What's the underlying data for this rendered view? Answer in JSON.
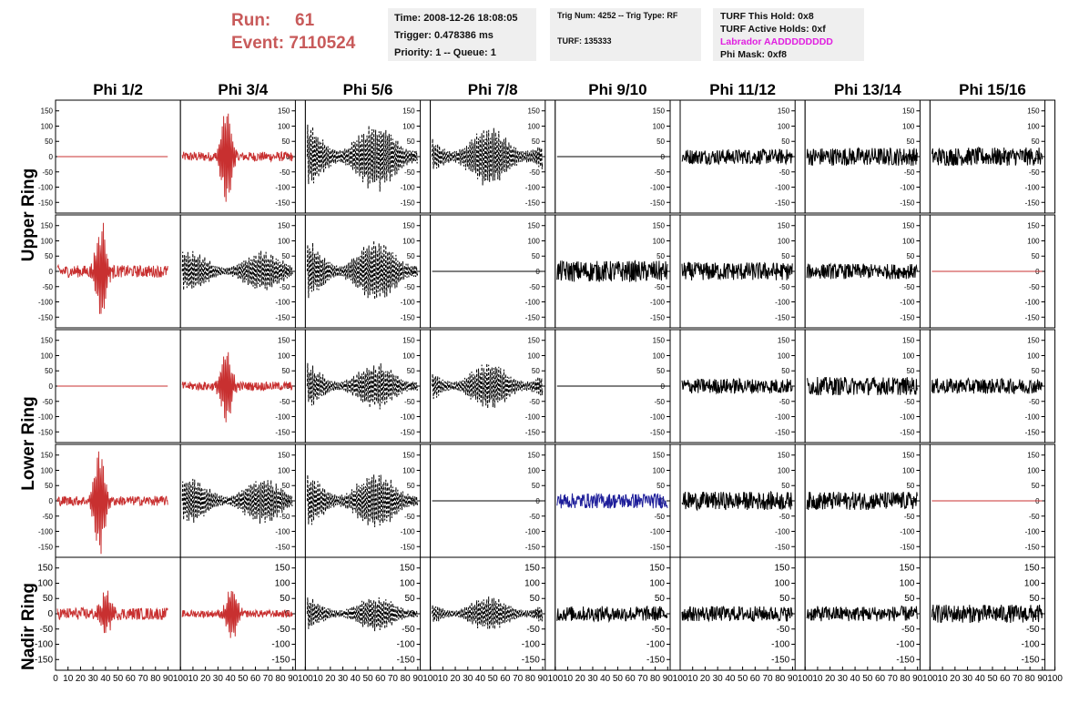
{
  "header": {
    "run_label": "Run:",
    "run_value": "61",
    "event_label": "Event:",
    "event_value": "7110524",
    "time_line": "Time: 2008-12-26 18:08:05",
    "trigger_line": "Trigger: 0.478386 ms",
    "priority_line": "Priority: 1 -- Queue: 1",
    "trig_line": "Trig Num: 4252 -- Trig Type: RF",
    "turf_line": "TURF: 135333",
    "turf_hold": "TURF This Hold: 0x8",
    "turf_active": "TURF Active Holds: 0xf",
    "labrador": "Labrador AADDDDDDDD",
    "phi_mask": "Phi Mask: 0xf8"
  },
  "colors": {
    "red_trace": "#c83030",
    "blue_trace": "#1e1e9a",
    "black_trace": "#000000",
    "run_text": "#c85a5a",
    "labrador_text": "#e020e0",
    "box_bg": "#efefef"
  },
  "chart_data": {
    "type": "line",
    "columns": [
      "Phi 1/2",
      "Phi 3/4",
      "Phi 5/6",
      "Phi 7/8",
      "Phi 9/10",
      "Phi 11/12",
      "Phi 13/14",
      "Phi 15/16"
    ],
    "rows": [
      "Upper Ring",
      "Lower Ring",
      "Nadir Ring"
    ],
    "y_ticks": [
      -150,
      -100,
      -50,
      0,
      50,
      100,
      150
    ],
    "y_tick_labels": [
      "-150",
      "-100",
      "-50",
      "0",
      "50",
      "100",
      "150"
    ],
    "ylim": [
      -185,
      185
    ],
    "x_ticks": [
      0,
      10,
      20,
      30,
      40,
      50,
      60,
      70,
      80,
      90,
      100
    ],
    "x_tick_labels": [
      "0",
      "10",
      "20",
      "30",
      "40",
      "50",
      "60",
      "70",
      "80",
      "90",
      "100"
    ],
    "xlim": [
      0,
      100
    ],
    "panels": [
      {
        "row": 0,
        "col": 0,
        "style": "flat",
        "color": "red",
        "amp": 0
      },
      {
        "row": 0,
        "col": 1,
        "style": "pulse",
        "color": "red",
        "amp": 20,
        "peak": 150,
        "center": 40
      },
      {
        "row": 0,
        "col": 2,
        "style": "dashed",
        "color": "black",
        "amp": 120
      },
      {
        "row": 0,
        "col": 3,
        "style": "dashed",
        "color": "black",
        "amp": 100
      },
      {
        "row": 0,
        "col": 4,
        "style": "flat",
        "color": "black",
        "amp": 0
      },
      {
        "row": 0,
        "col": 5,
        "style": "noise",
        "color": "black",
        "amp": 25
      },
      {
        "row": 0,
        "col": 6,
        "style": "noise",
        "color": "black",
        "amp": 30
      },
      {
        "row": 0,
        "col": 7,
        "style": "noise",
        "color": "black",
        "amp": 30
      },
      {
        "row": 1,
        "col": 0,
        "style": "pulse",
        "color": "red",
        "amp": 25,
        "peak": 155,
        "center": 40
      },
      {
        "row": 1,
        "col": 1,
        "style": "dashed",
        "color": "black",
        "amp": 70
      },
      {
        "row": 1,
        "col": 2,
        "style": "dashed",
        "color": "black",
        "amp": 110
      },
      {
        "row": 1,
        "col": 3,
        "style": "flat",
        "color": "black",
        "amp": 0
      },
      {
        "row": 1,
        "col": 4,
        "style": "noise",
        "color": "black",
        "amp": 35
      },
      {
        "row": 1,
        "col": 5,
        "style": "noise",
        "color": "black",
        "amp": 30
      },
      {
        "row": 1,
        "col": 6,
        "style": "noise",
        "color": "black",
        "amp": 25
      },
      {
        "row": 1,
        "col": 7,
        "style": "flat",
        "color": "red",
        "amp": 0
      },
      {
        "row": 2,
        "col": 0,
        "style": "flat",
        "color": "red",
        "amp": 0
      },
      {
        "row": 2,
        "col": 1,
        "style": "pulse",
        "color": "red",
        "amp": 18,
        "peak": 120,
        "center": 40
      },
      {
        "row": 2,
        "col": 2,
        "style": "dashed",
        "color": "black",
        "amp": 80
      },
      {
        "row": 2,
        "col": 3,
        "style": "dashed",
        "color": "black",
        "amp": 80
      },
      {
        "row": 2,
        "col": 4,
        "style": "flat",
        "color": "black",
        "amp": 0
      },
      {
        "row": 2,
        "col": 5,
        "style": "noise",
        "color": "black",
        "amp": 25
      },
      {
        "row": 2,
        "col": 6,
        "style": "noise",
        "color": "black",
        "amp": 30
      },
      {
        "row": 2,
        "col": 7,
        "style": "noise",
        "color": "black",
        "amp": 25
      },
      {
        "row": 3,
        "col": 0,
        "style": "pulse",
        "color": "red",
        "amp": 20,
        "peak": 175,
        "center": 38
      },
      {
        "row": 3,
        "col": 1,
        "style": "dashed",
        "color": "black",
        "amp": 80
      },
      {
        "row": 3,
        "col": 2,
        "style": "dashed",
        "color": "black",
        "amp": 100
      },
      {
        "row": 3,
        "col": 3,
        "style": "flat",
        "color": "black",
        "amp": 0
      },
      {
        "row": 3,
        "col": 4,
        "style": "noise",
        "color": "blue",
        "amp": 25
      },
      {
        "row": 3,
        "col": 5,
        "style": "noise",
        "color": "black",
        "amp": 30
      },
      {
        "row": 3,
        "col": 6,
        "style": "noise",
        "color": "black",
        "amp": 30
      },
      {
        "row": 3,
        "col": 7,
        "style": "flat",
        "color": "red",
        "amp": 0
      },
      {
        "row": 4,
        "col": 0,
        "style": "pulse",
        "color": "red",
        "amp": 25,
        "peak": 70,
        "center": 45
      },
      {
        "row": 4,
        "col": 1,
        "style": "pulse",
        "color": "red",
        "amp": 15,
        "peak": 85,
        "center": 45
      },
      {
        "row": 4,
        "col": 2,
        "style": "dashed",
        "color": "black",
        "amp": 60
      },
      {
        "row": 4,
        "col": 3,
        "style": "dashed",
        "color": "black",
        "amp": 60
      },
      {
        "row": 4,
        "col": 4,
        "style": "noise",
        "color": "black",
        "amp": 25
      },
      {
        "row": 4,
        "col": 5,
        "style": "noise",
        "color": "black",
        "amp": 25
      },
      {
        "row": 4,
        "col": 6,
        "style": "noise",
        "color": "black",
        "amp": 25
      },
      {
        "row": 4,
        "col": 7,
        "style": "noise",
        "color": "black",
        "amp": 30
      }
    ]
  }
}
